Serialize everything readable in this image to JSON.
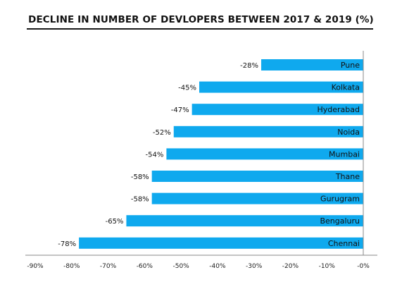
{
  "chart_data": {
    "type": "bar",
    "orientation": "horizontal",
    "title": "DECLINE IN NUMBER OF DEVLOPERS BETWEEN 2017 & 2019 (%)",
    "categories": [
      "Pune",
      "Kolkata",
      "Hyderabad",
      "Noida",
      "Mumbai",
      "Thane",
      "Gurugram",
      "Bengaluru",
      "Chennai"
    ],
    "values": [
      -28,
      -45,
      -47,
      -52,
      -54,
      -58,
      -58,
      -65,
      -78
    ],
    "value_labels": [
      "-28%",
      "-45%",
      "-47%",
      "-52%",
      "-54%",
      "-58%",
      "-58%",
      "-65%",
      "-78%"
    ],
    "x_ticks": [
      -90,
      -80,
      -70,
      -60,
      -50,
      -40,
      -30,
      -20,
      -10,
      0
    ],
    "x_tick_labels": [
      "-90%",
      "-80%",
      "-70%",
      "-60%",
      "-50%",
      "-40%",
      "-30%",
      "-20%",
      "-10%",
      "-0%"
    ],
    "xlim": [
      -90,
      0
    ],
    "xlabel": "",
    "ylabel": "",
    "grid": false,
    "bar_color": "#0fa9ee"
  }
}
